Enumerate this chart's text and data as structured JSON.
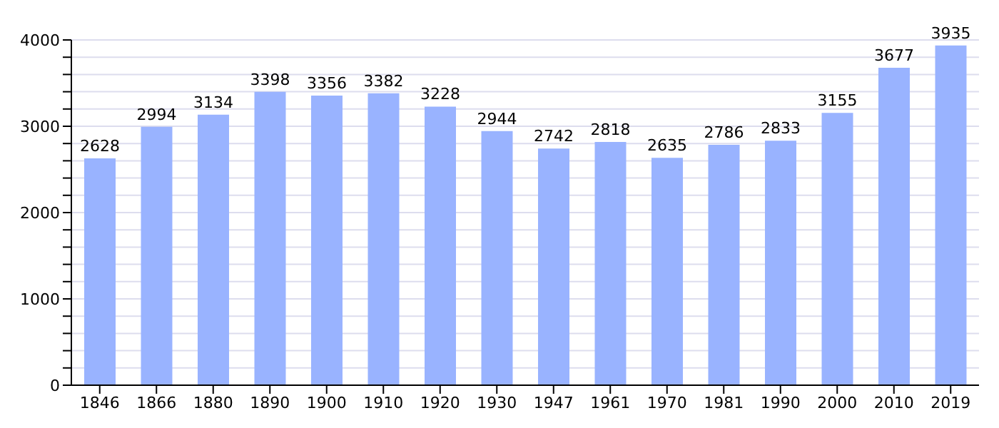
{
  "chart_data": {
    "type": "bar",
    "categories": [
      "1846",
      "1866",
      "1880",
      "1890",
      "1900",
      "1910",
      "1920",
      "1930",
      "1947",
      "1961",
      "1970",
      "1981",
      "1990",
      "2000",
      "2010",
      "2019"
    ],
    "values": [
      2628,
      2994,
      3134,
      3398,
      3356,
      3382,
      3228,
      2944,
      2742,
      2818,
      2635,
      2786,
      2833,
      3155,
      3677,
      3935
    ],
    "color": "#99b3ff",
    "ylim": [
      0,
      4000
    ],
    "yticks": [
      0,
      {
        "value": 200,
        "label": null
      },
      {
        "value": 400,
        "label": null
      },
      {
        "value": 600,
        "label": null
      },
      {
        "value": 800,
        "label": null
      },
      1000,
      {
        "value": 1200,
        "label": null
      },
      {
        "value": 1400,
        "label": null
      },
      {
        "value": 1600,
        "label": null
      },
      {
        "value": 1800,
        "label": null
      },
      2000,
      {
        "value": 2200,
        "label": null
      },
      {
        "value": 2400,
        "label": null
      },
      {
        "value": 2600,
        "label": null
      },
      {
        "value": 2800,
        "label": null
      },
      3000,
      {
        "value": 3200,
        "label": null
      },
      {
        "value": 3400,
        "label": null
      },
      {
        "value": 3600,
        "label": null
      },
      {
        "value": 3800,
        "label": null
      },
      4000
    ],
    "grid": "y",
    "data_labels": true
  }
}
